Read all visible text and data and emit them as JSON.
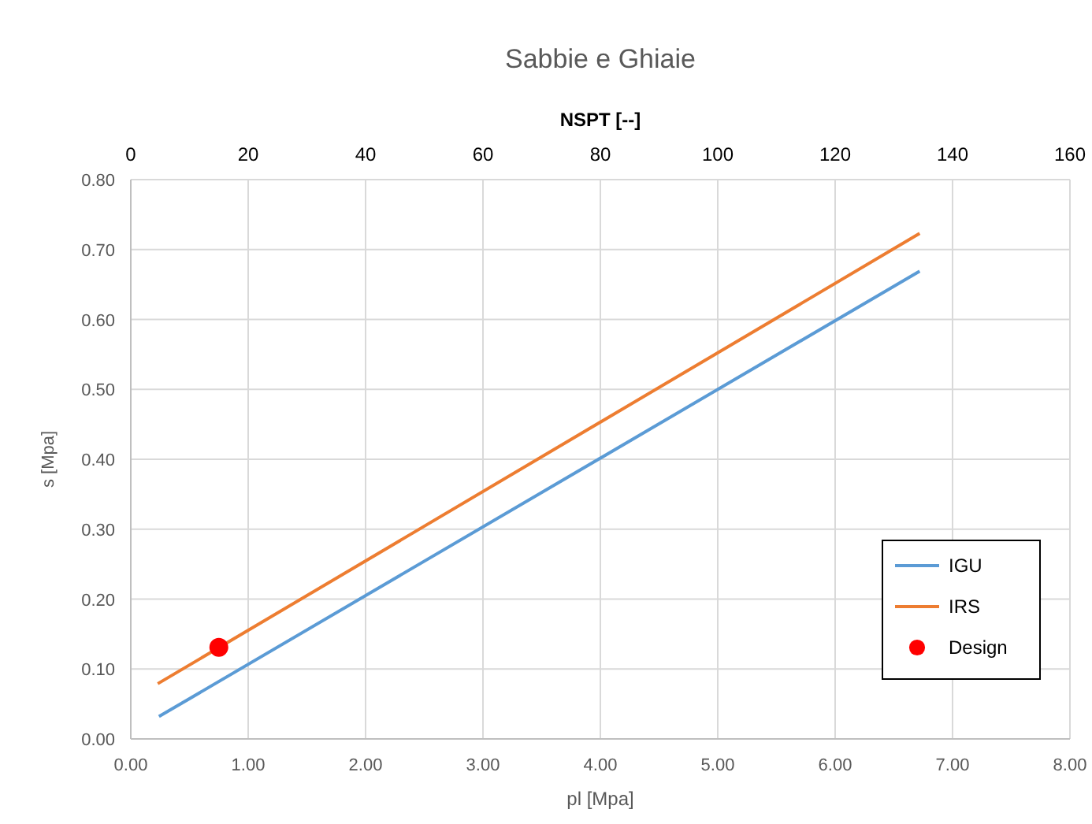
{
  "chart_data": {
    "type": "line",
    "title": "Sabbie e Ghiaie",
    "xlabel": "pl [Mpa]",
    "ylabel": "s [Mpa]",
    "x2label": "NSPT [--]",
    "xlim": [
      0,
      8
    ],
    "xticks": [
      {
        "value": 0,
        "label": "0.00"
      },
      {
        "value": 1,
        "label": "1.00"
      },
      {
        "value": 2,
        "label": "2.00"
      },
      {
        "value": 3,
        "label": "3.00"
      },
      {
        "value": 4,
        "label": "4.00"
      },
      {
        "value": 5,
        "label": "5.00"
      },
      {
        "value": 6,
        "label": "6.00"
      },
      {
        "value": 7,
        "label": "7.00"
      },
      {
        "value": 8,
        "label": "8.00"
      }
    ],
    "ylim": [
      0,
      0.8
    ],
    "yticks": [
      {
        "value": 0,
        "label": "0.00"
      },
      {
        "value": 0.1,
        "label": "0.10"
      },
      {
        "value": 0.2,
        "label": "0.20"
      },
      {
        "value": 0.3,
        "label": "0.30"
      },
      {
        "value": 0.4,
        "label": "0.40"
      },
      {
        "value": 0.5,
        "label": "0.50"
      },
      {
        "value": 0.6,
        "label": "0.60"
      },
      {
        "value": 0.7,
        "label": "0.70"
      },
      {
        "value": 0.8,
        "label": "0.80"
      }
    ],
    "x2lim": [
      0,
      160
    ],
    "x2ticks": [
      0,
      20,
      40,
      60,
      80,
      100,
      120,
      140,
      160
    ],
    "grid": true,
    "legend": "right",
    "marker": "none",
    "line_style": "solid",
    "series": [
      {
        "name": "IGU",
        "color": "#5b9bd5",
        "x": [
          0.24,
          6.72
        ],
        "values": [
          0.032,
          0.669
        ]
      },
      {
        "name": "IRS",
        "color": "#ed7d31",
        "x": [
          0.23,
          6.72
        ],
        "values": [
          0.079,
          0.723
        ]
      },
      {
        "name": "Design",
        "type": "scatter",
        "marker": "circle",
        "color": "#ff0000",
        "x": [
          0.75
        ],
        "values": [
          0.131
        ]
      }
    ]
  }
}
